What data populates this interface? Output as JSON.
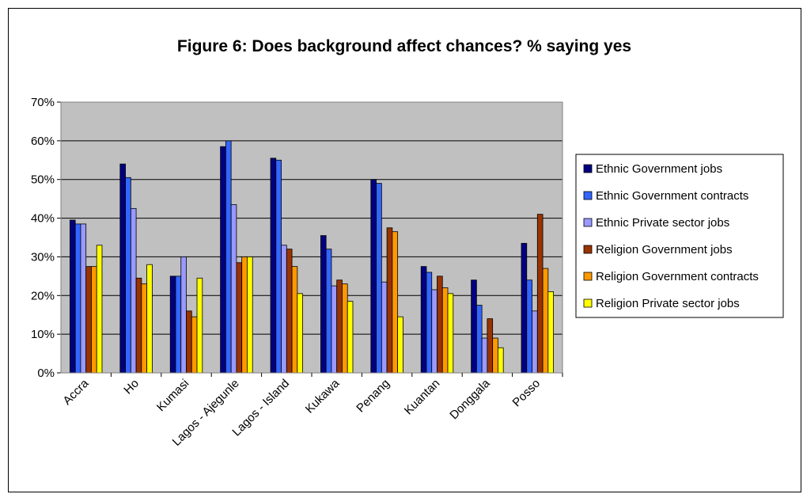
{
  "chart_data": {
    "type": "bar",
    "title": "Figure 6: Does background affect chances? % saying yes",
    "xlabel": "",
    "ylabel": "",
    "ylim": [
      0,
      70
    ],
    "y_ticks": [
      "0%",
      "10%",
      "20%",
      "30%",
      "40%",
      "50%",
      "60%",
      "70%"
    ],
    "grid": true,
    "legend_position": "right",
    "plot_background": "#c0c0c0",
    "categories": [
      "Accra",
      "Ho",
      "Kumasi",
      "Lagos - Ajegunle",
      "Lagos - Island",
      "Kukawa",
      "Penang",
      "Kuantan",
      "Donggala",
      "Posso"
    ],
    "series": [
      {
        "name": "Ethnic Government jobs",
        "color": "#000080",
        "values": [
          39.5,
          54,
          25,
          58.5,
          55.5,
          35.5,
          50,
          27.5,
          24,
          33.5
        ]
      },
      {
        "name": "Ethnic Government contracts",
        "color": "#3366ff",
        "values": [
          38.5,
          50.5,
          25,
          60,
          55,
          32,
          49,
          26,
          17.5,
          24
        ]
      },
      {
        "name": "Ethnic Private sector jobs",
        "color": "#9999ff",
        "values": [
          38.5,
          42.5,
          30,
          43.5,
          33,
          22.5,
          23.5,
          21.5,
          9,
          16
        ]
      },
      {
        "name": "Religion Government jobs",
        "color": "#993300",
        "values": [
          27.5,
          24.5,
          16,
          28.5,
          32,
          24,
          37.5,
          25,
          14,
          41
        ]
      },
      {
        "name": "Religion Government contracts",
        "color": "#ff9900",
        "values": [
          27.5,
          23,
          14.5,
          30,
          27.5,
          23,
          36.5,
          22,
          9,
          27
        ]
      },
      {
        "name": "Religion  Private sector jobs",
        "color": "#ffff00",
        "values": [
          33,
          28,
          24.5,
          30,
          20.5,
          18.5,
          14.5,
          20.5,
          6.5,
          21
        ]
      }
    ]
  }
}
